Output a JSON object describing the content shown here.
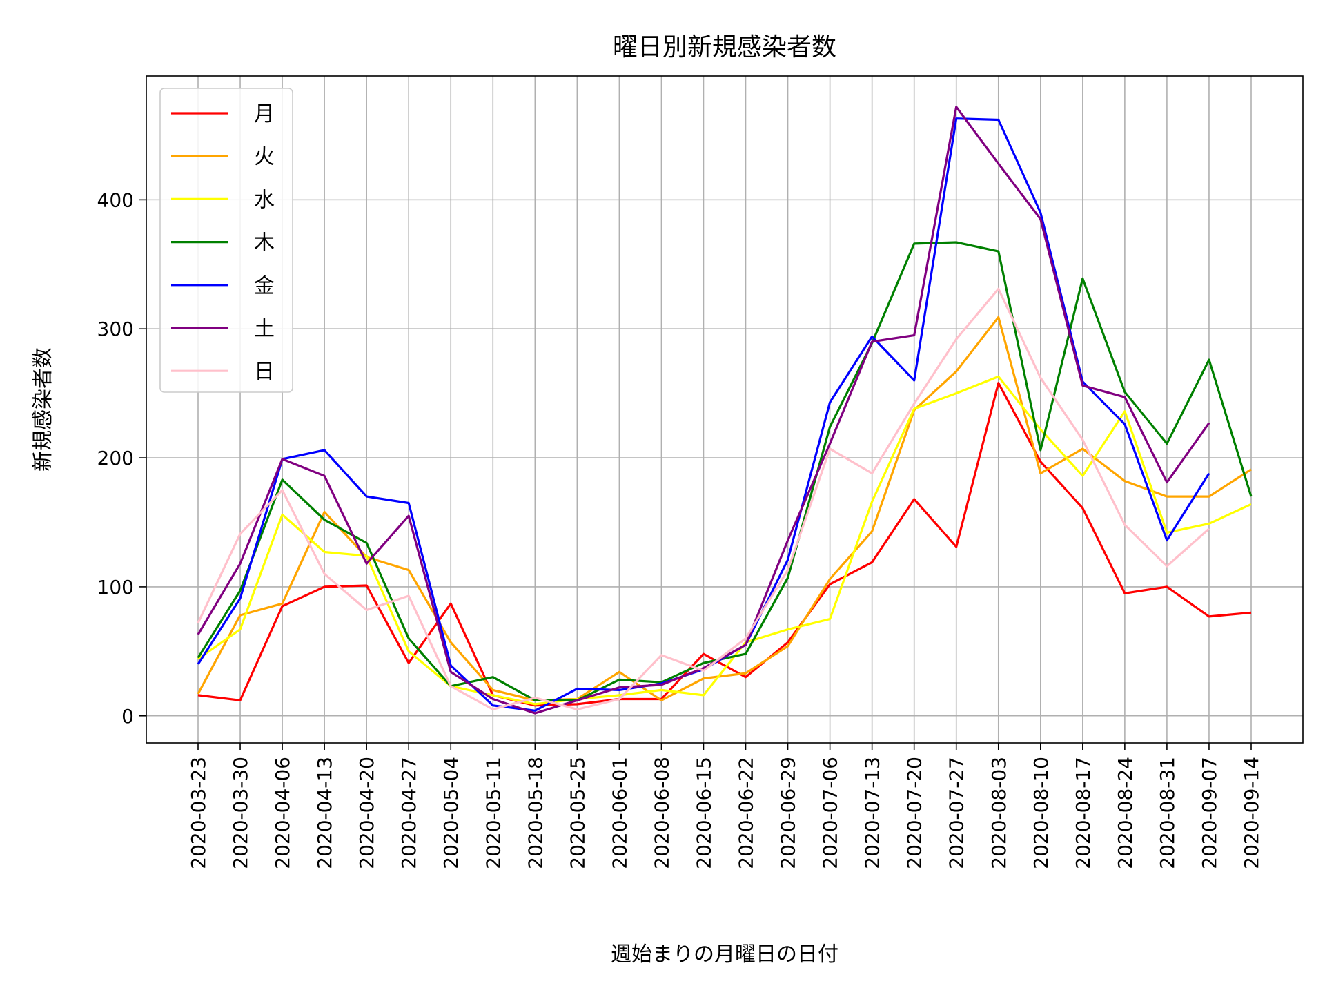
{
  "chart_data": {
    "type": "line",
    "title": "曜日別新規感染者数",
    "xlabel": "週始まりの月曜日の日付",
    "ylabel": "新規感染者数",
    "categories": [
      "2020-03-23",
      "2020-03-30",
      "2020-04-06",
      "2020-04-13",
      "2020-04-20",
      "2020-04-27",
      "2020-05-04",
      "2020-05-11",
      "2020-05-18",
      "2020-05-25",
      "2020-06-01",
      "2020-06-08",
      "2020-06-15",
      "2020-06-22",
      "2020-06-29",
      "2020-07-06",
      "2020-07-13",
      "2020-07-20",
      "2020-07-27",
      "2020-08-03",
      "2020-08-10",
      "2020-08-17",
      "2020-08-24",
      "2020-08-31",
      "2020-09-07",
      "2020-09-14"
    ],
    "ylim": [
      -21,
      496
    ],
    "yticks": [
      0,
      100,
      200,
      300,
      400
    ],
    "grid": true,
    "legend_position": "top-left",
    "series": [
      {
        "name": "月",
        "color": "#ff0000",
        "values": [
          16,
          12,
          85,
          100,
          101,
          41,
          87,
          16,
          8,
          9,
          13,
          13,
          48,
          30,
          57,
          102,
          119,
          168,
          131,
          258,
          197,
          161,
          95,
          100,
          77,
          80
        ]
      },
      {
        "name": "火",
        "color": "#ffa500",
        "values": [
          17,
          78,
          87,
          158,
          123,
          113,
          57,
          20,
          12,
          13,
          34,
          12,
          29,
          33,
          54,
          106,
          143,
          237,
          267,
          309,
          188,
          207,
          182,
          170,
          170,
          191
        ]
      },
      {
        "name": "水",
        "color": "#ffff00",
        "values": [
          44,
          67,
          156,
          127,
          124,
          50,
          23,
          16,
          9,
          13,
          16,
          20,
          16,
          57,
          67,
          75,
          166,
          238,
          250,
          263,
          222,
          186,
          236,
          142,
          149,
          164
        ]
      },
      {
        "name": "木",
        "color": "#008000",
        "values": [
          45,
          97,
          183,
          152,
          134,
          60,
          23,
          30,
          12,
          12,
          28,
          26,
          41,
          48,
          107,
          224,
          289,
          366,
          367,
          360,
          206,
          339,
          251,
          211,
          276,
          170
        ]
      },
      {
        "name": "金",
        "color": "#0000ff",
        "values": [
          40,
          91,
          199,
          206,
          170,
          165,
          39,
          8,
          4,
          21,
          20,
          25,
          36,
          55,
          121,
          243,
          294,
          260,
          463,
          462,
          390,
          259,
          226,
          136,
          188,
          null
        ]
      },
      {
        "name": "土",
        "color": "#800080",
        "values": [
          63,
          118,
          199,
          186,
          118,
          155,
          34,
          13,
          2,
          12,
          22,
          24,
          37,
          55,
          136,
          211,
          290,
          295,
          472,
          428,
          385,
          256,
          247,
          181,
          227,
          null
        ]
      },
      {
        "name": "日",
        "color": "#ffc0cb",
        "values": [
          72,
          141,
          175,
          110,
          82,
          93,
          23,
          5,
          14,
          5,
          13,
          47,
          35,
          60,
          113,
          207,
          188,
          242,
          292,
          331,
          262,
          214,
          148,
          116,
          145,
          null
        ]
      }
    ]
  }
}
